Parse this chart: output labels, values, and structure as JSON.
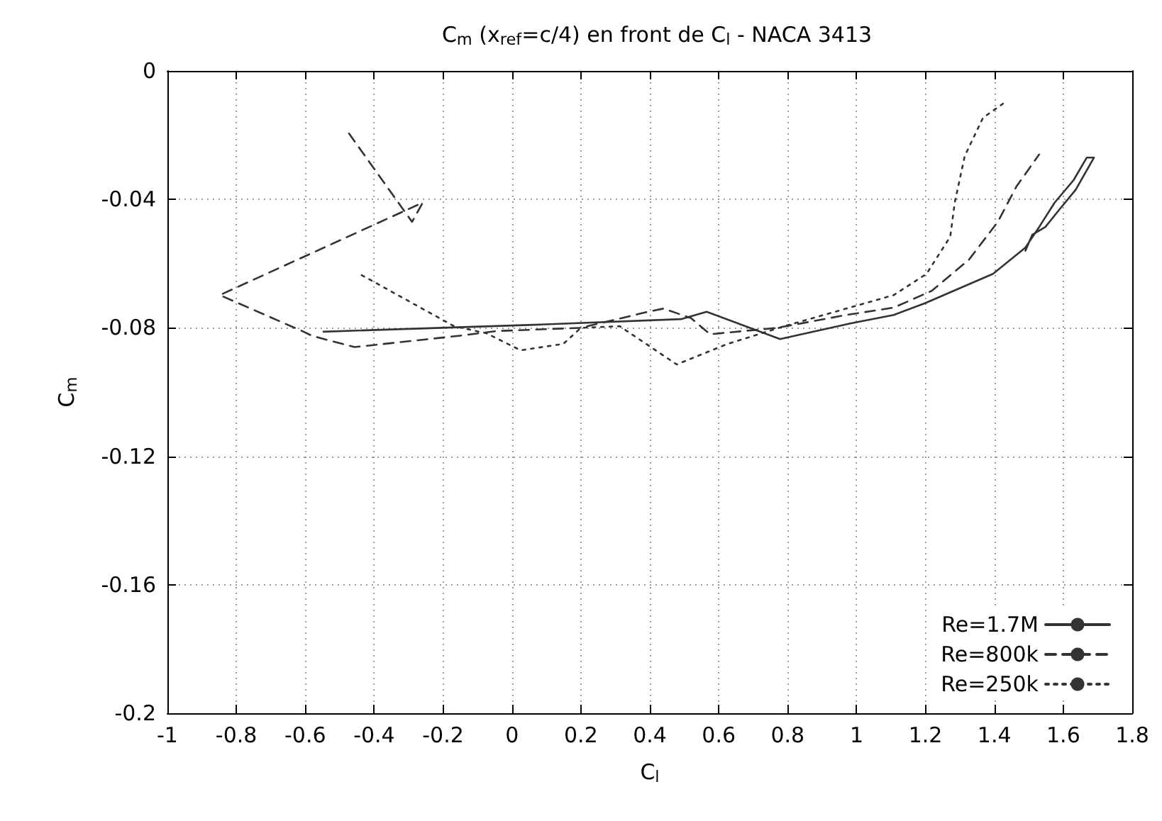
{
  "chart_data": {
    "type": "line",
    "title": "C$_{m}$ (x$_{ref}$=c/4) en front de C$_{l}$ - NACA 3413",
    "xlabel": "C$_{l}$",
    "ylabel": "C$_{m}$",
    "xlim": [
      -1,
      1.8
    ],
    "xticks": [
      -1,
      -0.8,
      -0.6,
      -0.4,
      -0.2,
      0,
      0.2,
      0.4,
      0.6,
      0.8,
      1,
      1.2,
      1.4,
      1.6,
      1.8
    ],
    "ylim": [
      -0.2,
      0
    ],
    "yticks": [
      -0.2,
      -0.16,
      -0.12,
      -0.08,
      -0.04,
      0
    ],
    "grid": true,
    "legend": "bottom right",
    "marker": "none",
    "series": [
      {
        "name": "Re=1.7M",
        "color": "#333333",
        "line_style": "solid",
        "x": [
          -0.547,
          0.079,
          0.49,
          0.565,
          0.778,
          0.984,
          1.108,
          1.197,
          1.396,
          1.49,
          1.53,
          1.575,
          1.63,
          1.668,
          1.689,
          1.636,
          1.59,
          1.548,
          1.51,
          1.49
        ],
        "values": [
          -0.0812,
          -0.079,
          -0.0773,
          -0.075,
          -0.0835,
          -0.0786,
          -0.076,
          -0.0724,
          -0.0632,
          -0.055,
          -0.0486,
          -0.041,
          -0.034,
          -0.027,
          -0.027,
          -0.037,
          -0.043,
          -0.0486,
          -0.051,
          -0.056
        ]
      },
      {
        "name": "Re=800k",
        "color": "#333333",
        "line_style": "dashed",
        "x": [
          -0.473,
          -0.29,
          -0.259,
          -0.848,
          -0.609,
          -0.58,
          -0.457,
          -0.156,
          -0.045,
          0.2,
          0.395,
          0.44,
          0.52,
          0.575,
          0.77,
          0.97,
          1.108,
          1.218,
          1.326,
          1.41,
          1.464,
          1.53
        ],
        "values": [
          -0.0195,
          -0.047,
          -0.041,
          -0.0698,
          -0.081,
          -0.0825,
          -0.086,
          -0.0825,
          -0.081,
          -0.08,
          -0.075,
          -0.074,
          -0.077,
          -0.082,
          -0.08,
          -0.076,
          -0.0737,
          -0.0685,
          -0.0588,
          -0.047,
          -0.036,
          -0.026
        ]
      },
      {
        "name": "Re=250k",
        "color": "#333333",
        "line_style": "dotted",
        "x": [
          -0.436,
          -0.168,
          -0.074,
          0.025,
          0.149,
          0.2,
          0.313,
          0.478,
          0.626,
          0.79,
          1.108,
          1.203,
          1.272,
          1.285,
          1.314,
          1.367,
          1.425
        ],
        "values": [
          -0.0636,
          -0.0795,
          -0.0817,
          -0.087,
          -0.085,
          -0.08,
          -0.0795,
          -0.0914,
          -0.085,
          -0.0795,
          -0.0698,
          -0.0632,
          -0.0516,
          -0.041,
          -0.0265,
          -0.0146,
          -0.0102
        ]
      }
    ]
  }
}
